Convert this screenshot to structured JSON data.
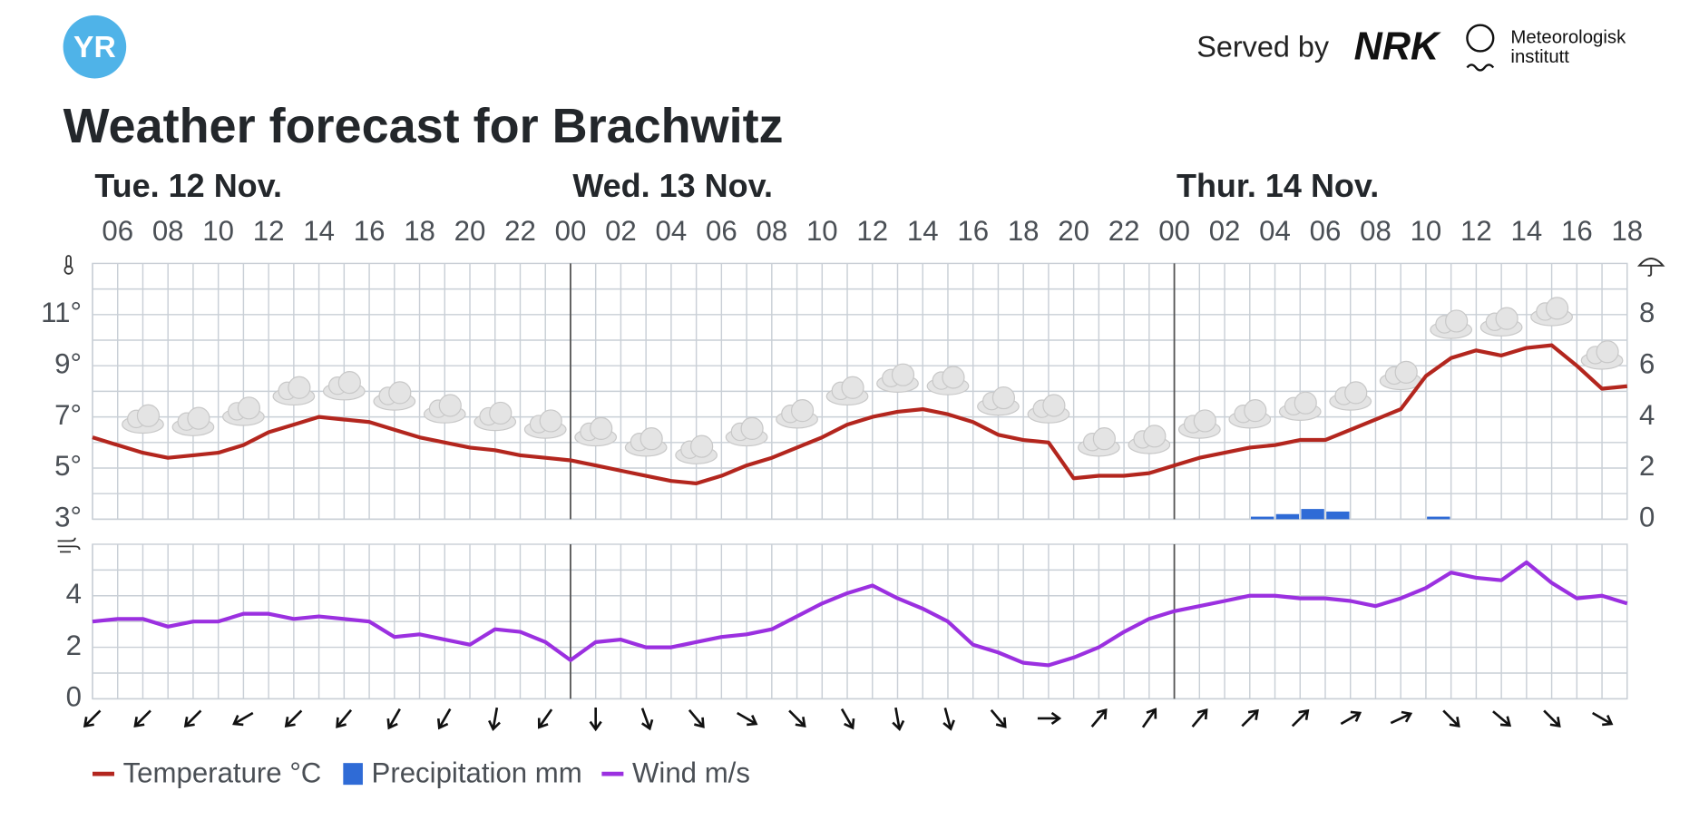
{
  "header": {
    "logo": "YR",
    "served_by": "Served by",
    "partner_1": "NRK",
    "partner_2": [
      "Meteorologisk",
      "institutt"
    ]
  },
  "chart_data": {
    "type": "line",
    "title": "Weather forecast for Brachwitz",
    "days": [
      "Tue. 12 Nov.",
      "Wed. 13 Nov.",
      "Thur. 14 Nov."
    ],
    "categories": [
      null,
      "06",
      null,
      "08",
      null,
      "10",
      null,
      "12",
      null,
      "14",
      null,
      "16",
      null,
      "18",
      null,
      "20",
      null,
      "22",
      null,
      "00",
      null,
      "02",
      null,
      "04",
      null,
      "06",
      null,
      "08",
      null,
      "10",
      null,
      "12",
      null,
      "14",
      null,
      "16",
      null,
      "18",
      null,
      "20",
      null,
      "22",
      null,
      "00",
      null,
      "02",
      null,
      "04",
      null,
      "06",
      null,
      "08",
      null,
      "10",
      null,
      "12",
      null,
      "14",
      null,
      "16",
      null,
      "18"
    ],
    "series": [
      {
        "name": "Temperature °C",
        "color": "#b3261e",
        "type": "line",
        "axis": "y",
        "values": [
          6.2,
          5.9,
          5.6,
          5.4,
          5.5,
          5.6,
          5.9,
          6.4,
          6.7,
          7.0,
          6.9,
          6.8,
          6.5,
          6.2,
          6.0,
          5.8,
          5.7,
          5.5,
          5.4,
          5.3,
          5.1,
          4.9,
          4.7,
          4.5,
          4.4,
          4.7,
          5.1,
          5.4,
          5.8,
          6.2,
          6.7,
          7.0,
          7.2,
          7.3,
          7.1,
          6.8,
          6.3,
          6.1,
          6.0,
          4.6,
          4.7,
          4.7,
          4.8,
          5.1,
          5.4,
          5.6,
          5.8,
          5.9,
          6.1,
          6.1,
          6.5,
          6.9,
          7.3,
          8.6,
          9.3,
          9.6,
          9.4,
          9.7,
          9.8,
          9.0,
          8.1,
          8.2
        ]
      },
      {
        "name": "Precipitation mm",
        "color": "#2f6bd6",
        "type": "bar",
        "axis": "y2",
        "values": [
          0,
          0,
          0,
          0,
          0,
          0,
          0,
          0,
          0,
          0,
          0,
          0,
          0,
          0,
          0,
          0,
          0,
          0,
          0,
          0,
          0,
          0,
          0,
          0,
          0,
          0,
          0,
          0,
          0,
          0,
          0,
          0,
          0,
          0,
          0,
          0,
          0,
          0,
          0,
          0,
          0,
          0,
          0,
          0,
          0,
          0,
          0.1,
          0.2,
          0.4,
          0.3,
          0,
          0,
          0,
          0.1,
          0,
          0,
          0,
          0,
          0,
          0,
          0,
          0
        ]
      },
      {
        "name": "Wind m/s",
        "color": "#9b30e0",
        "type": "line",
        "axis": "y3",
        "values": [
          3.0,
          3.1,
          3.1,
          2.8,
          3.0,
          3.0,
          3.3,
          3.3,
          3.1,
          3.2,
          3.1,
          3.0,
          2.4,
          2.5,
          2.3,
          2.1,
          2.7,
          2.6,
          2.2,
          1.5,
          2.2,
          2.3,
          2.0,
          2.0,
          2.2,
          2.4,
          2.5,
          2.7,
          3.2,
          3.7,
          4.1,
          4.4,
          3.9,
          3.5,
          3.0,
          2.1,
          1.8,
          1.4,
          1.3,
          1.6,
          2.0,
          2.6,
          3.1,
          3.4,
          3.6,
          3.8,
          4.0,
          4.0,
          3.9,
          3.9,
          3.8,
          3.6,
          3.9,
          4.3,
          4.9,
          4.7,
          4.6,
          5.3,
          4.5,
          3.9,
          4.0,
          3.7
        ]
      }
    ],
    "wind_direction": [
      45,
      null,
      45,
      null,
      45,
      null,
      60,
      null,
      45,
      null,
      40,
      null,
      30,
      null,
      30,
      null,
      10,
      null,
      35,
      null,
      0,
      null,
      340,
      null,
      320,
      null,
      300,
      null,
      315,
      null,
      330,
      null,
      350,
      null,
      345,
      null,
      320,
      null,
      270,
      null,
      220,
      null,
      215,
      null,
      220,
      null,
      225,
      null,
      225,
      null,
      240,
      null,
      245,
      null,
      315,
      null,
      310,
      null,
      315,
      null,
      300,
      null
    ],
    "ylim": [
      3,
      13
    ],
    "yticks": [
      {
        "value": 3,
        "label": "3°"
      },
      {
        "value": 5,
        "label": "5°"
      },
      {
        "value": 7,
        "label": "7°"
      },
      {
        "value": 9,
        "label": "9°"
      },
      {
        "value": 11,
        "label": "11°"
      }
    ],
    "y2lim": [
      0,
      10
    ],
    "y2ticks": [
      0,
      2,
      4,
      6,
      8
    ],
    "y3lim": [
      0,
      6
    ],
    "y3ticks": [
      0,
      2,
      4
    ],
    "grid": true
  }
}
